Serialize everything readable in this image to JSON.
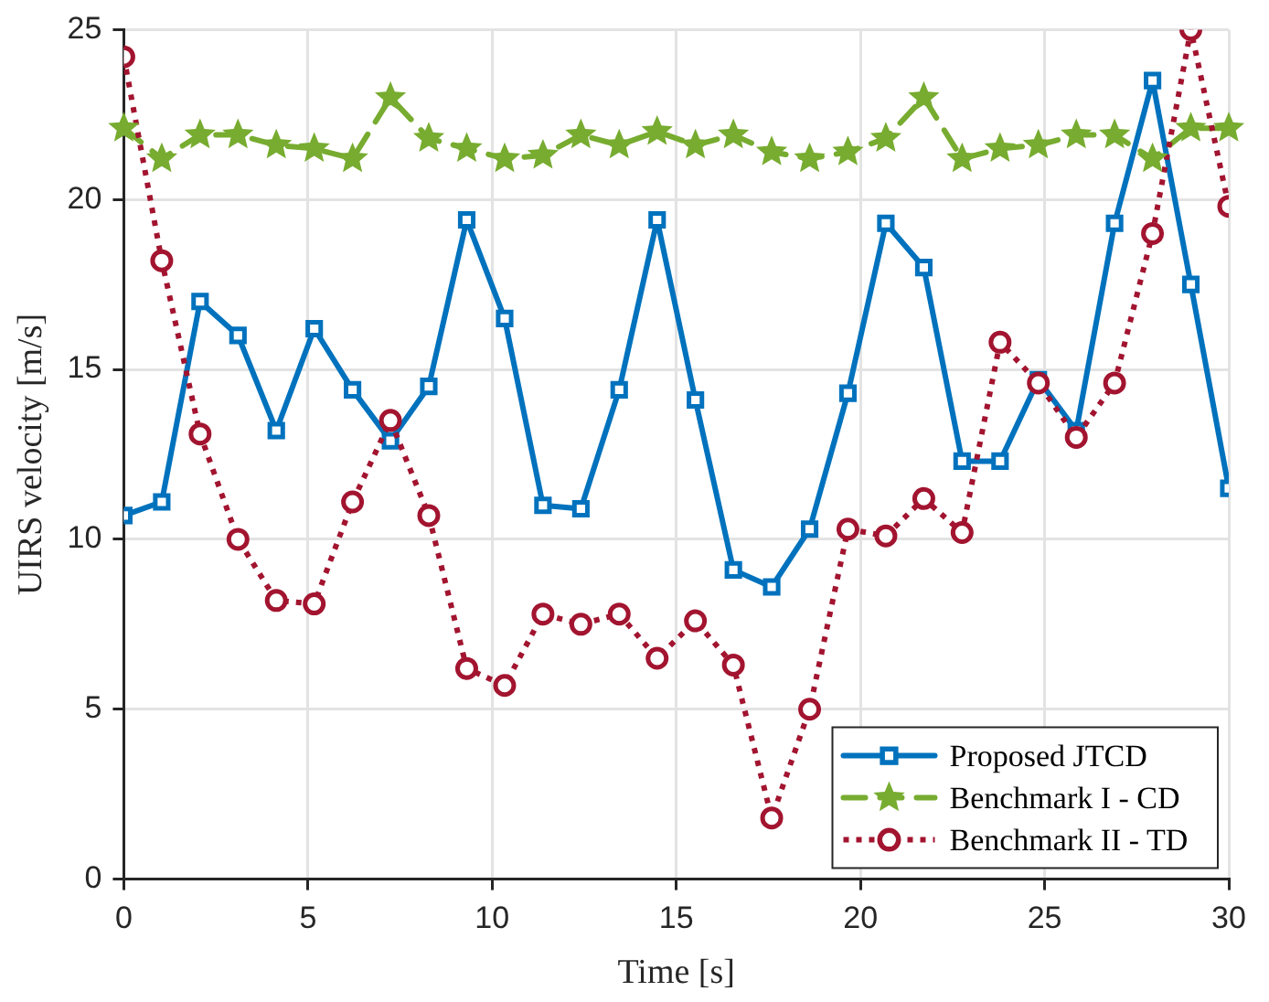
{
  "chart_data": {
    "type": "line",
    "xlabel": "Time [s]",
    "ylabel": "UIRS velocity [m/s]",
    "x": [
      0,
      1.03,
      2.07,
      3.1,
      4.14,
      5.17,
      6.21,
      7.24,
      8.28,
      9.31,
      10.34,
      11.38,
      12.41,
      13.45,
      14.48,
      15.52,
      16.55,
      17.59,
      18.62,
      19.66,
      20.69,
      21.72,
      22.76,
      23.79,
      24.83,
      25.86,
      26.9,
      27.93,
      28.97,
      30
    ],
    "series": [
      {
        "name": "Proposed JTCD",
        "color": "#0072bd",
        "marker": "square",
        "line_style": "solid",
        "values": [
          10.7,
          11.1,
          17.0,
          16.0,
          13.2,
          16.2,
          14.4,
          12.9,
          14.5,
          19.4,
          16.5,
          11.0,
          10.9,
          14.4,
          19.4,
          14.1,
          9.1,
          8.6,
          10.3,
          14.3,
          19.3,
          18.0,
          12.3,
          12.3,
          14.7,
          13.2,
          19.3,
          23.5,
          17.5,
          11.5
        ]
      },
      {
        "name": "Benchmark I - CD",
        "color": "#77ac30",
        "marker": "star",
        "line_style": "dashed",
        "values": [
          22.1,
          21.2,
          21.9,
          21.9,
          21.6,
          21.5,
          21.2,
          23.0,
          21.8,
          21.5,
          21.2,
          21.3,
          21.9,
          21.6,
          22.0,
          21.6,
          21.9,
          21.4,
          21.2,
          21.4,
          21.8,
          23.0,
          21.2,
          21.5,
          21.6,
          21.9,
          21.9,
          21.2,
          22.1,
          22.1
        ]
      },
      {
        "name": "Benchmark II - TD",
        "color": "#a2142f",
        "marker": "circle",
        "line_style": "dotted",
        "values": [
          24.2,
          18.2,
          13.1,
          10.0,
          8.2,
          8.1,
          11.1,
          13.5,
          10.7,
          6.2,
          5.7,
          7.8,
          7.5,
          7.8,
          6.5,
          7.6,
          6.3,
          1.8,
          5.0,
          10.3,
          10.1,
          11.2,
          10.2,
          15.8,
          14.6,
          13.0,
          14.6,
          19.0,
          25.0,
          19.8
        ]
      }
    ],
    "xlim": [
      0,
      30
    ],
    "xticks": [
      0,
      5,
      10,
      15,
      20,
      25,
      30
    ],
    "ylim": [
      0,
      25
    ],
    "yticks": [
      0,
      5,
      10,
      15,
      20,
      25
    ],
    "grid": true,
    "legend": "bottom right"
  }
}
